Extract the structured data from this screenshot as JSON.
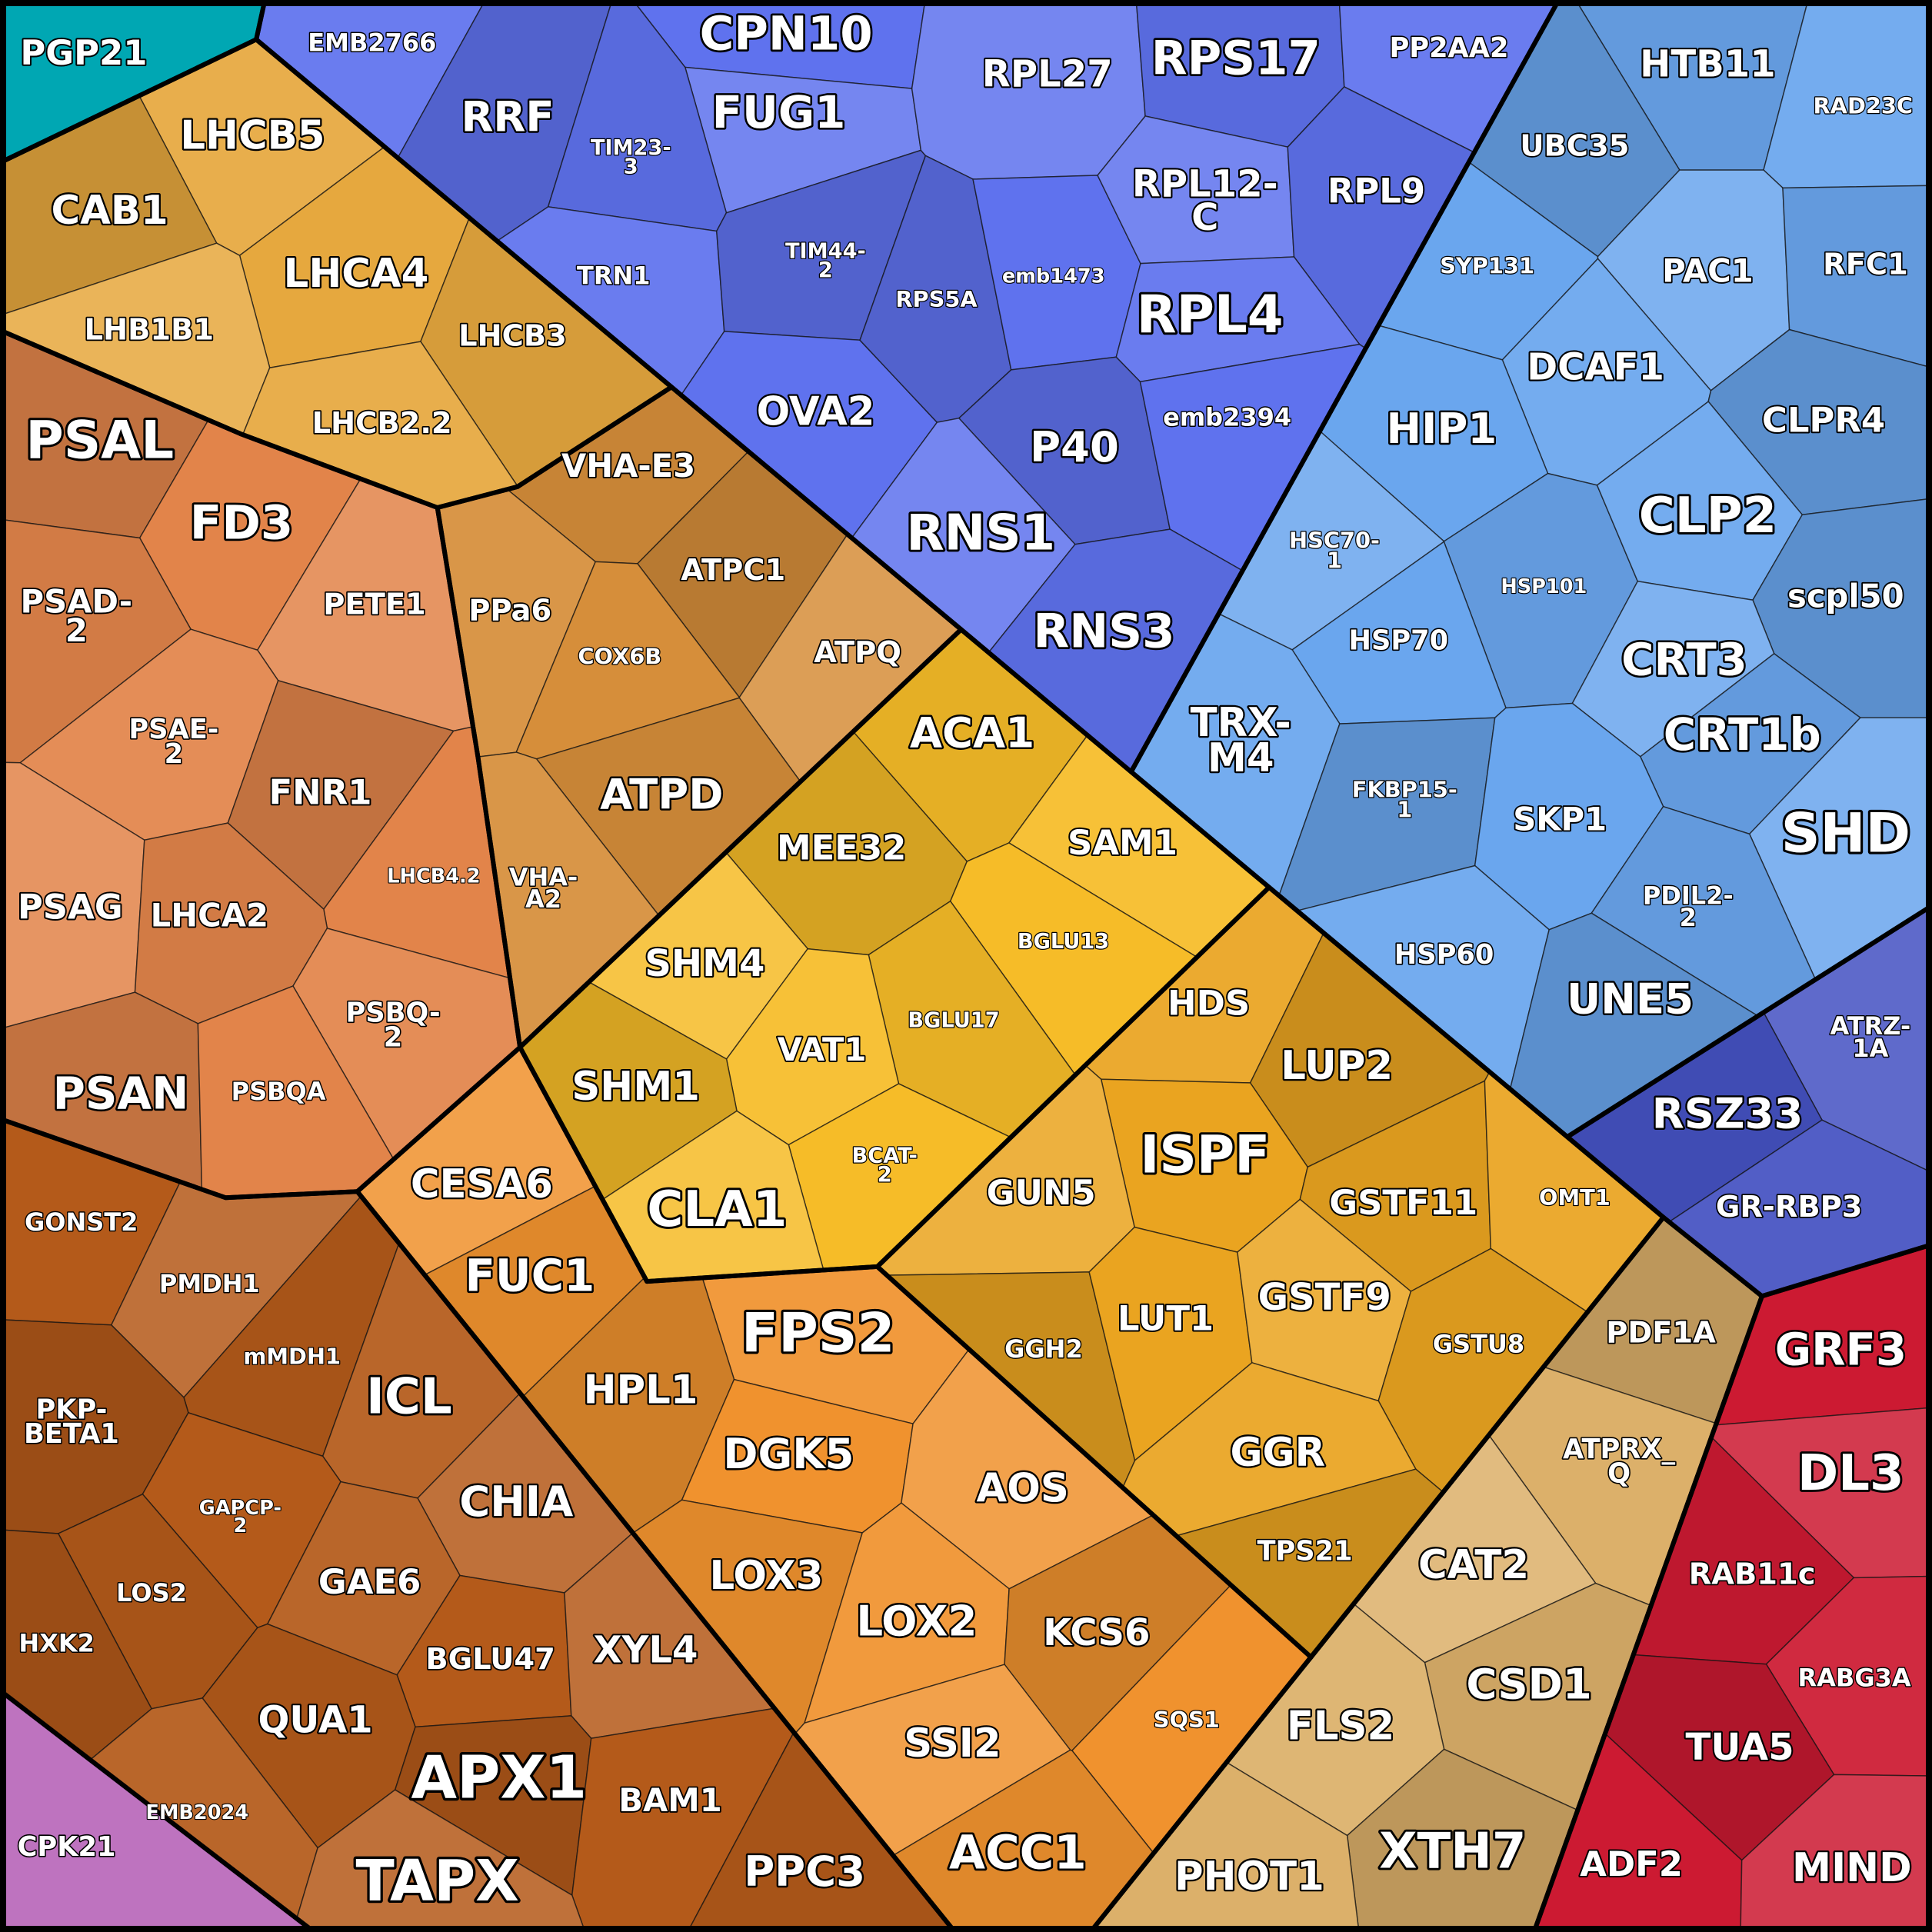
{
  "treemap": {
    "type": "voronoi-treemap",
    "groups": [
      {
        "color": "#00c2d0",
        "cells": [
          "PGP21"
        ]
      },
      {
        "color": "#5f72ee",
        "cells": [
          "EMB2766",
          "RRF",
          "CPN10",
          "FUG1",
          "TIM23-3",
          "TRN1",
          "TIM44-2",
          "OVA2",
          "RPL27",
          "RPS17",
          "PP2AA2",
          "RPS5A",
          "emb1473",
          "RPL12-C",
          "RPL9",
          "RPL4",
          "P40",
          "emb2394",
          "RNS1",
          "RNS3"
        ]
      },
      {
        "color": "#6aa6ee",
        "cells": [
          "HTB11",
          "RAD23C",
          "UBC35",
          "SYP131",
          "PAC1",
          "RFC1",
          "DCAF1",
          "CLPR4",
          "HIP1",
          "HSC70-1",
          "HSP101",
          "CLP2",
          "scpl50",
          "HSP70",
          "CRT3",
          "CRT1b",
          "TRX-M4",
          "FKBP15-1",
          "SKP1",
          "SHD",
          "PDIL2-2",
          "HSP60",
          "UNE5"
        ]
      },
      {
        "color": "#4552c2",
        "cells": [
          "ATRZ-1A",
          "RSZ33",
          "GR-RBP3"
        ]
      },
      {
        "color": "#cc1a32",
        "cells": [
          "GRF3",
          "DL3",
          "RAB11c",
          "RABG3A",
          "TUA5",
          "ADF2",
          "MIND"
        ]
      },
      {
        "color": "#dcb06a",
        "cells": [
          "PDF1A",
          "ATPRX_Q",
          "CAT2",
          "CSD1",
          "FLS2",
          "XTH7",
          "PHOT1"
        ]
      },
      {
        "color": "#eaa420",
        "cells": [
          "HDS",
          "LUP2",
          "ISPF",
          "GUN5",
          "GSTF11",
          "OMT1",
          "GGH2",
          "LUT1",
          "GSTF9",
          "GSTU8",
          "GGR",
          "TPS21"
        ]
      },
      {
        "color": "#f6bc28",
        "cells": [
          "ACA1",
          "SAM1",
          "MEE32",
          "BGLU13",
          "SHM4",
          "BGLU17",
          "VAT1",
          "SHM1",
          "BCAT-2",
          "CLA1"
        ]
      },
      {
        "color": "#f0922e",
        "cells": [
          "CESA6",
          "FUC1",
          "FPS2",
          "HPL1",
          "DGK5",
          "AOS",
          "LOX3",
          "LOX2",
          "KCS6",
          "SQS1",
          "SSI2",
          "ACC1"
        ]
      },
      {
        "color": "#b45a1a",
        "cells": [
          "GONST2",
          "PMDH1",
          "mMDH1",
          "ICL",
          "PKP-BETA1",
          "GAPCP-2",
          "CHIA",
          "LOS2",
          "GAE6",
          "HXK2",
          "BGLU47",
          "XYL4",
          "QUA1",
          "EMB2024",
          "APX1",
          "BAM1",
          "TAPX",
          "PPC3"
        ]
      },
      {
        "color": "#e2844a",
        "cells": [
          "PSAL",
          "FD3",
          "PETE1",
          "PSAD-2",
          "PSAE-2",
          "FNR1",
          "LHCB4.2",
          "PSAG",
          "LHCA2",
          "PSBQ-2",
          "PSAN",
          "PSBQA"
        ]
      },
      {
        "color": "#e6a83e",
        "cells": [
          "LHCB5",
          "CAB1",
          "LHCA4",
          "LHB1B1",
          "LHCB3",
          "LHCB2.2"
        ]
      },
      {
        "color": "#d68e3a",
        "cells": [
          "VHA-E3",
          "PPa6",
          "ATPC1",
          "COX6B",
          "ATPQ",
          "ATPD",
          "VHA-A2"
        ]
      },
      {
        "color": "#b35cb5",
        "cells": [
          "CPK21"
        ]
      }
    ]
  }
}
